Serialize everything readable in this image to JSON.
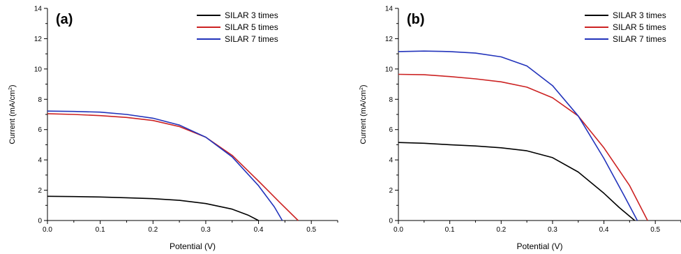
{
  "chart_data": [
    {
      "type": "line",
      "panel_label": "(a)",
      "xlabel": "Potential (V)",
      "ylabel": "Current (mA/cm",
      "ylabel_sup": "2",
      "ylabel_end": ")",
      "xlim": [
        0,
        0.55
      ],
      "ylim": [
        0,
        14
      ],
      "xticks": [
        "0.0",
        "0.1",
        "0.2",
        "0.3",
        "0.4",
        "0.5"
      ],
      "yticks": [
        "0",
        "2",
        "4",
        "6",
        "8",
        "10",
        "12",
        "14"
      ],
      "legend_position": "top-right",
      "series": [
        {
          "name": "SILAR 3 times",
          "color": "#000000",
          "x": [
            0,
            0.05,
            0.1,
            0.15,
            0.2,
            0.25,
            0.3,
            0.35,
            0.38,
            0.4
          ],
          "y": [
            1.6,
            1.58,
            1.55,
            1.5,
            1.44,
            1.33,
            1.12,
            0.75,
            0.36,
            0.0
          ]
        },
        {
          "name": "SILAR 5 times",
          "color": "#cc2222",
          "x": [
            0,
            0.05,
            0.1,
            0.15,
            0.2,
            0.25,
            0.3,
            0.35,
            0.4,
            0.44,
            0.475
          ],
          "y": [
            7.05,
            7.0,
            6.92,
            6.8,
            6.6,
            6.2,
            5.5,
            4.3,
            2.6,
            1.2,
            0.0
          ]
        },
        {
          "name": "SILAR 7 times",
          "color": "#2233bb",
          "x": [
            0,
            0.05,
            0.1,
            0.15,
            0.2,
            0.25,
            0.3,
            0.35,
            0.4,
            0.43,
            0.445
          ],
          "y": [
            7.22,
            7.2,
            7.15,
            7.0,
            6.75,
            6.3,
            5.5,
            4.2,
            2.3,
            0.9,
            0.0
          ]
        }
      ]
    },
    {
      "type": "line",
      "panel_label": "(b)",
      "xlabel": "Potential (V)",
      "ylabel": "Current (mA/cm",
      "ylabel_sup": "2",
      "ylabel_end": ")",
      "xlim": [
        0,
        0.55
      ],
      "ylim": [
        0,
        14
      ],
      "xticks": [
        "0.0",
        "0.1",
        "0.2",
        "0.3",
        "0.4",
        "0.5"
      ],
      "yticks": [
        "0",
        "2",
        "4",
        "6",
        "8",
        "10",
        "12",
        "14"
      ],
      "legend_position": "top-right",
      "series": [
        {
          "name": "SILAR 3 times",
          "color": "#000000",
          "x": [
            0,
            0.05,
            0.1,
            0.15,
            0.2,
            0.25,
            0.3,
            0.35,
            0.4,
            0.43,
            0.46
          ],
          "y": [
            5.15,
            5.1,
            5.0,
            4.92,
            4.8,
            4.6,
            4.15,
            3.2,
            1.8,
            0.85,
            0.0
          ]
        },
        {
          "name": "SILAR 5 times",
          "color": "#cc2222",
          "x": [
            0,
            0.05,
            0.1,
            0.15,
            0.2,
            0.25,
            0.3,
            0.35,
            0.4,
            0.45,
            0.485
          ],
          "y": [
            9.65,
            9.62,
            9.5,
            9.35,
            9.15,
            8.8,
            8.1,
            6.9,
            4.8,
            2.3,
            0.0
          ]
        },
        {
          "name": "SILAR 7 times",
          "color": "#2233bb",
          "x": [
            0,
            0.05,
            0.1,
            0.15,
            0.2,
            0.25,
            0.3,
            0.35,
            0.4,
            0.44,
            0.465
          ],
          "y": [
            11.15,
            11.18,
            11.15,
            11.05,
            10.8,
            10.2,
            8.9,
            6.9,
            4.1,
            1.6,
            0.0
          ]
        }
      ]
    }
  ]
}
